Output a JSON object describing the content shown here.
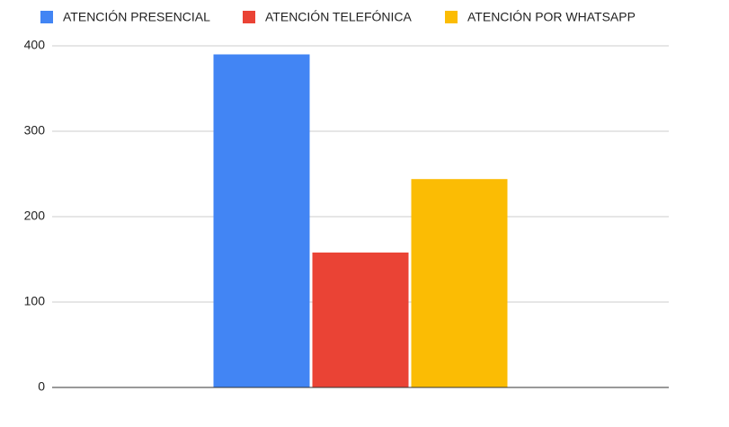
{
  "chart_data": {
    "type": "bar",
    "categories": [
      null
    ],
    "series": [
      {
        "name": "ATENCIÓN PRESENCIAL",
        "color": "#4285f4",
        "values": [
          390
        ]
      },
      {
        "name": "ATENCIÓN TELEFÓNICA",
        "color": "#ea4335",
        "values": [
          158
        ]
      },
      {
        "name": "ATENCIÓN POR WHATSAPP",
        "color": "#fbbc04",
        "values": [
          244
        ]
      }
    ],
    "ylim": [
      0,
      400
    ],
    "yticks": [
      0,
      100,
      200,
      300,
      400
    ],
    "grid": true,
    "legend": "top"
  }
}
